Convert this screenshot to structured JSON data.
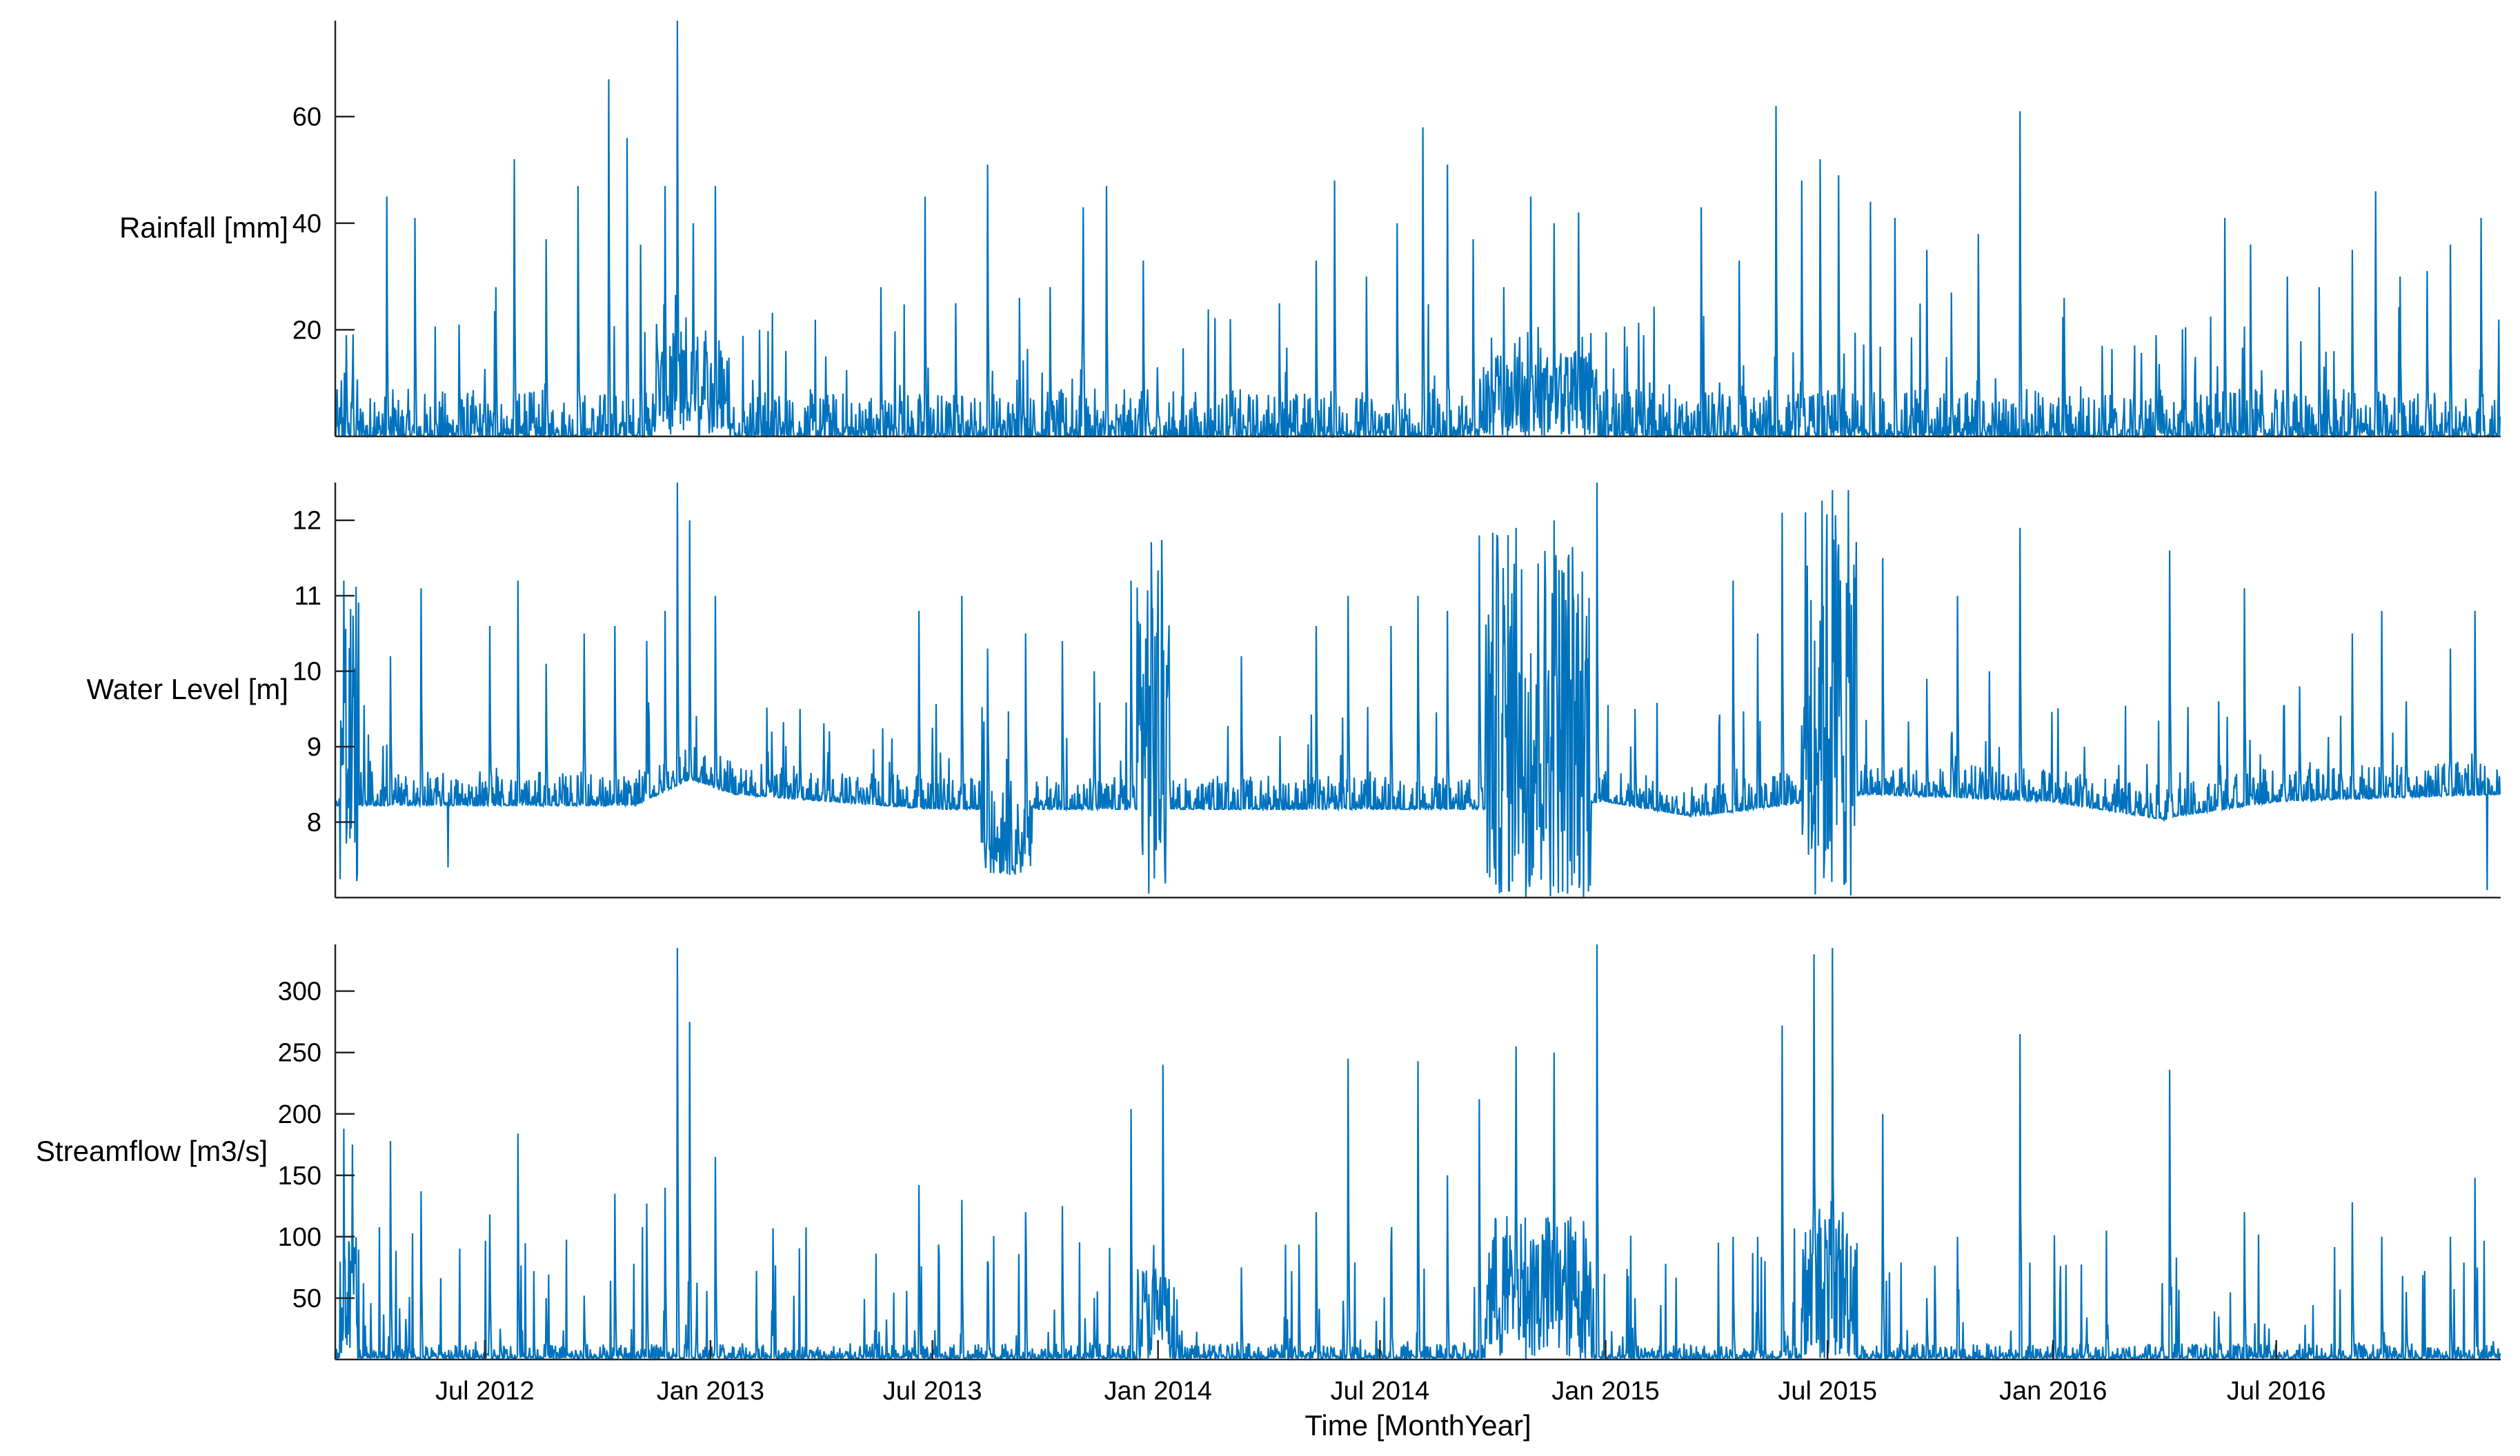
{
  "figure": {
    "xlabel": "Time [MonthYear]",
    "x_tick_labels": [
      "Jul 2012",
      "Jan 2013",
      "Jul 2013",
      "Jan 2014",
      "Jul 2014",
      "Jan 2015",
      "Jul 2015",
      "Jan 2016",
      "Jul 2016"
    ],
    "series_color": "#0072BD",
    "axis_color": "#262626"
  },
  "chart_data": [
    {
      "type": "line",
      "ylabel": "Rainfall [mm]",
      "xlim": [
        "2012-03-01",
        "2016-12-31"
      ],
      "ylim": [
        0,
        78
      ],
      "y_ticks": [
        20,
        40,
        60
      ],
      "x_ticks": [
        "2012-07-01",
        "2013-01-01",
        "2013-07-01",
        "2014-01-01",
        "2014-07-01",
        "2015-01-01",
        "2015-07-01",
        "2016-01-01",
        "2016-07-01"
      ],
      "baseline": 0,
      "noise": 3,
      "wet_periods": [
        [
          "2012-11-15",
          "2013-01-15",
          12
        ],
        [
          "2014-09-20",
          "2014-12-25",
          10
        ]
      ],
      "peaks": [
        [
          "2012-03-10",
          19
        ],
        [
          "2012-04-12",
          45
        ],
        [
          "2012-05-05",
          41
        ],
        [
          "2012-06-10",
          21
        ],
        [
          "2012-07-10",
          28
        ],
        [
          "2012-07-25",
          52
        ],
        [
          "2012-08-20",
          37
        ],
        [
          "2012-09-15",
          47
        ],
        [
          "2012-10-10",
          67
        ],
        [
          "2012-10-25",
          56
        ],
        [
          "2012-11-05",
          36
        ],
        [
          "2012-11-25",
          47
        ],
        [
          "2012-12-05",
          78
        ],
        [
          "2012-12-18",
          40
        ],
        [
          "2013-01-05",
          47
        ],
        [
          "2013-02-10",
          20
        ],
        [
          "2013-04-05",
          15
        ],
        [
          "2013-05-20",
          28
        ],
        [
          "2013-06-25",
          45
        ],
        [
          "2013-07-20",
          25
        ],
        [
          "2013-08-15",
          51
        ],
        [
          "2013-09-10",
          26
        ],
        [
          "2013-10-05",
          28
        ],
        [
          "2013-11-01",
          43
        ],
        [
          "2013-11-20",
          47
        ],
        [
          "2013-12-20",
          33
        ],
        [
          "2014-03-01",
          22
        ],
        [
          "2014-04-10",
          25
        ],
        [
          "2014-05-10",
          33
        ],
        [
          "2014-05-25",
          48
        ],
        [
          "2014-06-20",
          30
        ],
        [
          "2014-07-15",
          40
        ],
        [
          "2014-08-05",
          58
        ],
        [
          "2014-08-25",
          51
        ],
        [
          "2014-09-15",
          37
        ],
        [
          "2014-10-10",
          28
        ],
        [
          "2014-11-01",
          45
        ],
        [
          "2014-11-20",
          40
        ],
        [
          "2014-12-10",
          42
        ],
        [
          "2015-02-01",
          19
        ],
        [
          "2015-03-20",
          43
        ],
        [
          "2015-04-20",
          33
        ],
        [
          "2015-05-20",
          62
        ],
        [
          "2015-06-10",
          48
        ],
        [
          "2015-06-25",
          52
        ],
        [
          "2015-07-10",
          49
        ],
        [
          "2015-08-05",
          44
        ],
        [
          "2015-08-25",
          41
        ],
        [
          "2015-09-20",
          35
        ],
        [
          "2015-10-10",
          27
        ],
        [
          "2015-11-01",
          38
        ],
        [
          "2015-12-05",
          61
        ],
        [
          "2016-01-10",
          26
        ],
        [
          "2016-02-10",
          17
        ],
        [
          "2016-03-25",
          19
        ],
        [
          "2016-05-20",
          41
        ],
        [
          "2016-06-10",
          36
        ],
        [
          "2016-07-10",
          30
        ],
        [
          "2016-08-05",
          28
        ],
        [
          "2016-09-01",
          35
        ],
        [
          "2016-09-20",
          46
        ],
        [
          "2016-10-10",
          30
        ],
        [
          "2016-11-01",
          31
        ],
        [
          "2016-11-20",
          36
        ],
        [
          "2016-12-15",
          41
        ]
      ]
    },
    {
      "type": "line",
      "ylabel": "Water Level [m]",
      "xlim": [
        "2012-03-01",
        "2016-12-31"
      ],
      "ylim": [
        7,
        12.5
      ],
      "y_ticks": [
        8,
        9,
        10,
        11,
        12
      ],
      "x_ticks": [
        "2012-07-01",
        "2013-01-01",
        "2013-07-01",
        "2014-01-01",
        "2014-07-01",
        "2015-01-01",
        "2015-07-01",
        "2016-01-01",
        "2016-07-01"
      ],
      "baseline": 8.25,
      "noise": 0.15,
      "baseline_segments": [
        [
          "2012-03-01",
          8.25
        ],
        [
          "2012-11-01",
          8.25
        ],
        [
          "2012-12-15",
          8.6
        ],
        [
          "2013-01-20",
          8.4
        ],
        [
          "2013-07-01",
          8.2
        ],
        [
          "2014-10-01",
          8.2
        ],
        [
          "2015-01-01",
          8.3
        ],
        [
          "2015-03-15",
          8.1
        ],
        [
          "2015-08-01",
          8.4
        ],
        [
          "2016-01-01",
          8.3
        ],
        [
          "2016-04-05",
          8.05
        ],
        [
          "2016-04-06",
          8.1
        ],
        [
          "2016-07-01",
          8.3
        ],
        [
          "2016-12-31",
          8.4
        ]
      ],
      "bursts": [
        [
          "2012-03-05",
          "2012-03-20",
          7.0,
          11.2
        ],
        [
          "2013-08-10",
          "2013-09-20",
          7.3,
          8.3
        ],
        [
          "2013-12-15",
          "2014-01-10",
          7.0,
          11.8
        ],
        [
          "2014-09-25",
          "2014-12-20",
          7.0,
          11.9
        ],
        [
          "2015-06-10",
          "2015-07-25",
          7.0,
          12.4
        ]
      ],
      "peaks": [
        [
          "2012-03-08",
          11.2
        ],
        [
          "2012-04-15",
          10.2
        ],
        [
          "2012-05-10",
          11.1
        ],
        [
          "2012-06-01",
          7.4
        ],
        [
          "2012-07-05",
          10.6
        ],
        [
          "2012-07-28",
          11.2
        ],
        [
          "2012-08-20",
          10.1
        ],
        [
          "2012-09-20",
          10.5
        ],
        [
          "2012-10-15",
          10.6
        ],
        [
          "2012-11-10",
          10.4
        ],
        [
          "2012-11-25",
          10.8
        ],
        [
          "2012-12-05",
          12.5
        ],
        [
          "2012-12-15",
          12.0
        ],
        [
          "2013-01-05",
          11.0
        ],
        [
          "2013-02-20",
          9.2
        ],
        [
          "2013-03-15",
          9.5
        ],
        [
          "2013-06-20",
          10.8
        ],
        [
          "2013-07-25",
          11.0
        ],
        [
          "2013-08-15",
          10.3
        ],
        [
          "2013-09-15",
          10.5
        ],
        [
          "2013-10-15",
          10.4
        ],
        [
          "2013-11-10",
          10.0
        ],
        [
          "2013-12-10",
          11.2
        ],
        [
          "2014-03-10",
          10.2
        ],
        [
          "2014-05-10",
          10.6
        ],
        [
          "2014-06-05",
          11.0
        ],
        [
          "2014-07-10",
          10.6
        ],
        [
          "2014-08-01",
          11.0
        ],
        [
          "2014-08-25",
          10.8
        ],
        [
          "2014-09-20",
          11.8
        ],
        [
          "2014-10-20",
          11.9
        ],
        [
          "2014-11-20",
          12.0
        ],
        [
          "2014-12-25",
          12.5
        ],
        [
          "2015-01-25",
          9.5
        ],
        [
          "2015-04-15",
          11.2
        ],
        [
          "2015-05-05",
          10.5
        ],
        [
          "2015-05-25",
          12.1
        ],
        [
          "2015-07-05",
          12.4
        ],
        [
          "2015-08-15",
          11.5
        ],
        [
          "2015-09-20",
          9.9
        ],
        [
          "2015-10-15",
          11.0
        ],
        [
          "2015-11-10",
          10.0
        ],
        [
          "2015-12-05",
          11.9
        ],
        [
          "2016-04-05",
          11.6
        ],
        [
          "2016-05-15",
          9.6
        ],
        [
          "2016-06-05",
          11.1
        ],
        [
          "2016-07-20",
          9.8
        ],
        [
          "2016-09-01",
          10.5
        ],
        [
          "2016-09-25",
          10.8
        ],
        [
          "2016-10-15",
          9.6
        ],
        [
          "2016-11-20",
          10.3
        ],
        [
          "2016-12-10",
          10.8
        ],
        [
          "2016-12-20",
          7.1
        ]
      ]
    },
    {
      "type": "line",
      "ylabel": "Streamflow [m3/s]",
      "xlim": [
        "2012-03-01",
        "2016-12-31"
      ],
      "ylim": [
        0,
        338
      ],
      "y_ticks": [
        50,
        100,
        150,
        200,
        250,
        300
      ],
      "x_ticks": [
        "2012-07-01",
        "2013-01-01",
        "2013-07-01",
        "2014-01-01",
        "2014-07-01",
        "2015-01-01",
        "2015-07-01",
        "2016-01-01",
        "2016-07-01"
      ],
      "baseline": 2,
      "noise": 4,
      "bursts": [
        [
          "2012-03-05",
          "2012-03-20",
          0,
          100
        ],
        [
          "2013-12-15",
          "2014-01-10",
          0,
          80
        ],
        [
          "2014-09-25",
          "2014-12-20",
          0,
          120
        ],
        [
          "2015-06-10",
          "2015-07-25",
          0,
          130
        ]
      ],
      "peaks": [
        [
          "2012-03-08",
          188
        ],
        [
          "2012-03-15",
          175
        ],
        [
          "2012-04-15",
          178
        ],
        [
          "2012-05-10",
          137
        ],
        [
          "2012-07-05",
          118
        ],
        [
          "2012-07-28",
          184
        ],
        [
          "2012-08-20",
          50
        ],
        [
          "2012-09-20",
          52
        ],
        [
          "2012-10-15",
          135
        ],
        [
          "2012-11-10",
          127
        ],
        [
          "2012-11-25",
          140
        ],
        [
          "2012-12-05",
          335
        ],
        [
          "2012-12-15",
          275
        ],
        [
          "2013-01-05",
          165
        ],
        [
          "2013-02-20",
          40
        ],
        [
          "2013-06-20",
          142
        ],
        [
          "2013-07-25",
          130
        ],
        [
          "2013-08-15",
          80
        ],
        [
          "2013-09-15",
          120
        ],
        [
          "2013-10-15",
          125
        ],
        [
          "2013-11-10",
          50
        ],
        [
          "2013-12-10",
          204
        ],
        [
          "2014-01-05",
          240
        ],
        [
          "2014-03-10",
          75
        ],
        [
          "2014-05-10",
          120
        ],
        [
          "2014-06-05",
          245
        ],
        [
          "2014-07-10",
          93
        ],
        [
          "2014-08-01",
          243
        ],
        [
          "2014-08-25",
          150
        ],
        [
          "2014-09-20",
          212
        ],
        [
          "2014-10-20",
          255
        ],
        [
          "2014-11-20",
          250
        ],
        [
          "2014-12-25",
          338
        ],
        [
          "2015-01-25",
          50
        ],
        [
          "2015-04-15",
          100
        ],
        [
          "2015-05-05",
          100
        ],
        [
          "2015-05-25",
          272
        ],
        [
          "2015-06-20",
          330
        ],
        [
          "2015-07-05",
          335
        ],
        [
          "2015-08-15",
          200
        ],
        [
          "2015-09-20",
          50
        ],
        [
          "2015-10-15",
          100
        ],
        [
          "2015-12-05",
          265
        ],
        [
          "2016-04-05",
          236
        ],
        [
          "2016-05-15",
          35
        ],
        [
          "2016-06-05",
          120
        ],
        [
          "2016-09-01",
          128
        ],
        [
          "2016-09-25",
          100
        ],
        [
          "2016-10-15",
          55
        ],
        [
          "2016-11-20",
          100
        ],
        [
          "2016-12-10",
          148
        ],
        [
          "2016-12-25",
          15
        ]
      ]
    }
  ]
}
